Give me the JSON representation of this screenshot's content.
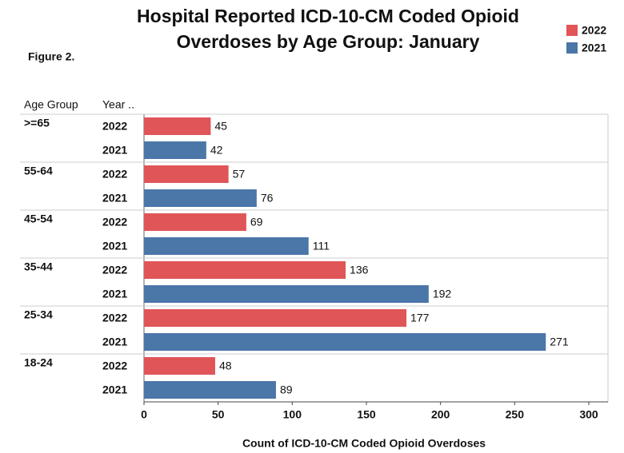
{
  "chart_data": {
    "type": "hbar",
    "title": "Hospital Reported ICD-10-CM Coded Opioid Overdoses by Age Group: January",
    "figure_label": "Figure 2.",
    "row_headers": [
      "Age Group",
      "Year .."
    ],
    "x_label": "Count of ICD-10-CM Coded Opioid Overdoses",
    "categories": [
      ">=65",
      "55-64",
      "45-54",
      "35-44",
      "25-34",
      "18-24"
    ],
    "series": [
      {
        "name": "2022",
        "color": "#e05558",
        "values": [
          45,
          57,
          69,
          136,
          177,
          48
        ]
      },
      {
        "name": "2021",
        "color": "#4a76a8",
        "values": [
          42,
          76,
          111,
          192,
          271,
          89
        ]
      }
    ],
    "xlim": [
      0,
      300
    ],
    "xticks": [
      0,
      50,
      100,
      150,
      200,
      250,
      300
    ],
    "grid": false,
    "legend": "top-right"
  }
}
